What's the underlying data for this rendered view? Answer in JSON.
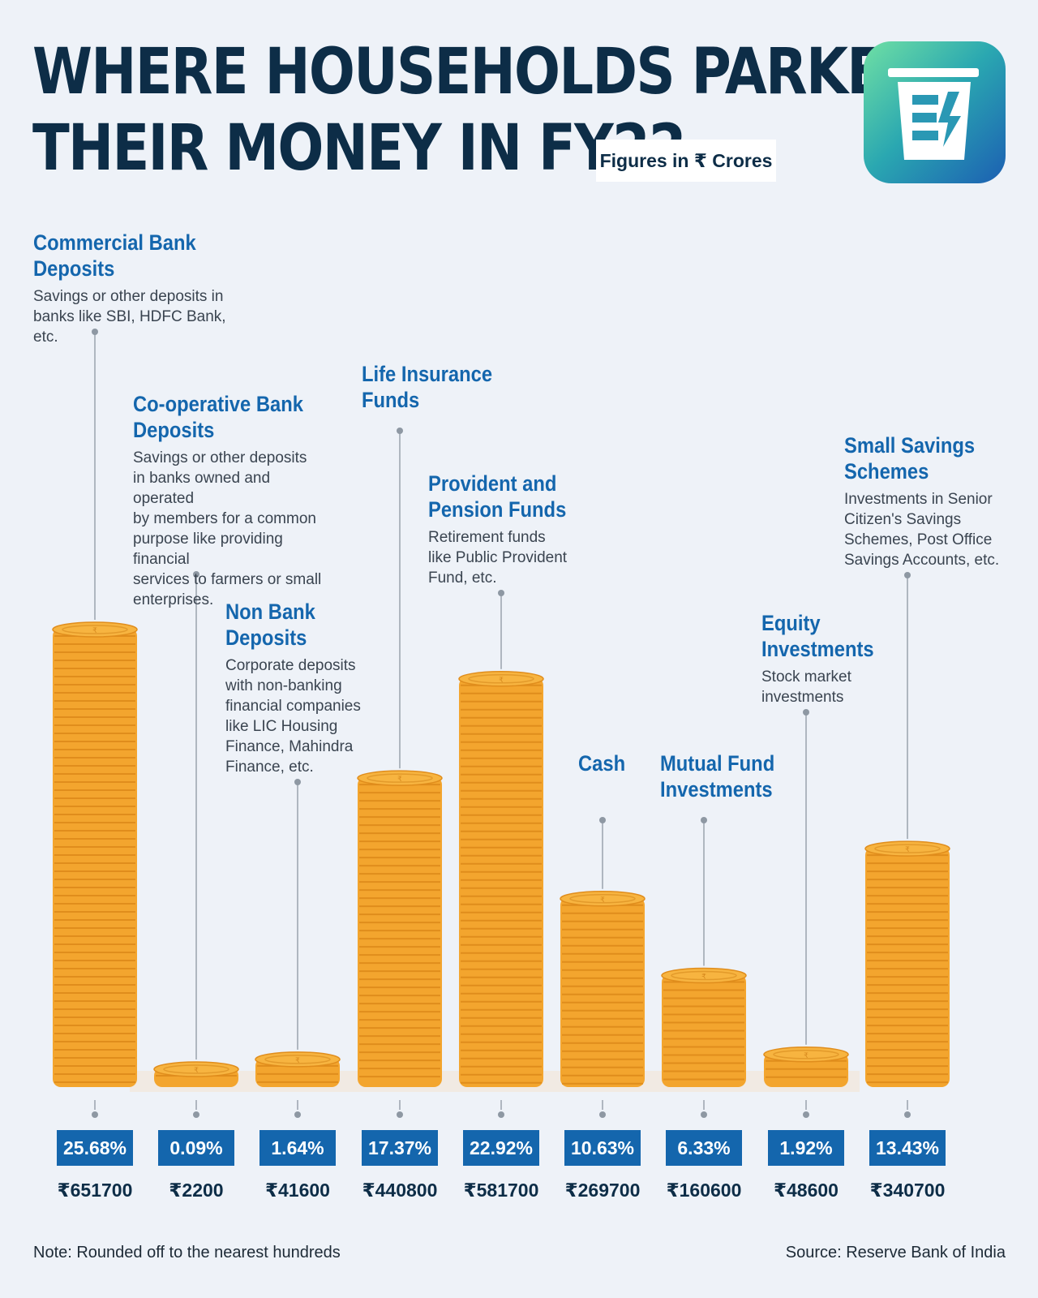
{
  "header": {
    "title_line1": "WHERE HOUSEHOLDS PARKED",
    "title_line2": "THEIR MONEY IN FY22",
    "units": "Figures in ₹ Crores",
    "logo_icon": "bucket-logo-icon"
  },
  "colors": {
    "background": "#eef2f8",
    "title": "#0d2d47",
    "accent": "#1466ad",
    "coin": "#f3a52e",
    "coin_edge": "#e08d1c"
  },
  "chart_data": {
    "type": "bar",
    "style": "coin-stacks",
    "categories": [
      "Commercial Bank Deposits",
      "Co-operative Bank Deposits",
      "Non Bank Deposits",
      "Life Insurance Funds",
      "Provident and Pension Funds",
      "Cash",
      "Mutual Fund Investments",
      "Equity Investments",
      "Small Savings Schemes"
    ],
    "descriptions": [
      "Savings or other deposits in\nbanks like SBI, HDFC Bank, etc.",
      "Savings or other deposits\nin banks owned and operated\nby members for a common\npurpose like providing financial\nservices to farmers or small\nenterprises.",
      "Corporate deposits\nwith non-banking\nfinancial companies\nlike LIC Housing\nFinance, Mahindra\nFinance, etc.",
      "",
      "Retirement funds\nlike Public Provident\nFund, etc.",
      "",
      "",
      "Stock market\ninvestments",
      "Investments in Senior\nCitizen's Savings\nSchemes, Post Office\nSavings Accounts, etc."
    ],
    "values": [
      651700,
      2200,
      41600,
      440800,
      581700,
      269700,
      160600,
      48600,
      340700
    ],
    "value_labels": [
      "₹651700",
      "₹2200",
      "₹41600",
      "₹440800",
      "₹581700",
      "₹269700",
      "₹160600",
      "₹48600",
      "₹340700"
    ],
    "percent_labels": [
      "25.68%",
      "0.09%",
      "1.64%",
      "17.37%",
      "22.92%",
      "10.63%",
      "6.33%",
      "1.92%",
      "13.43%"
    ],
    "unit": "₹ Crores"
  },
  "footer": {
    "note": "Note: Rounded off to the nearest hundreds",
    "source": "Source: Reserve Bank of India"
  }
}
